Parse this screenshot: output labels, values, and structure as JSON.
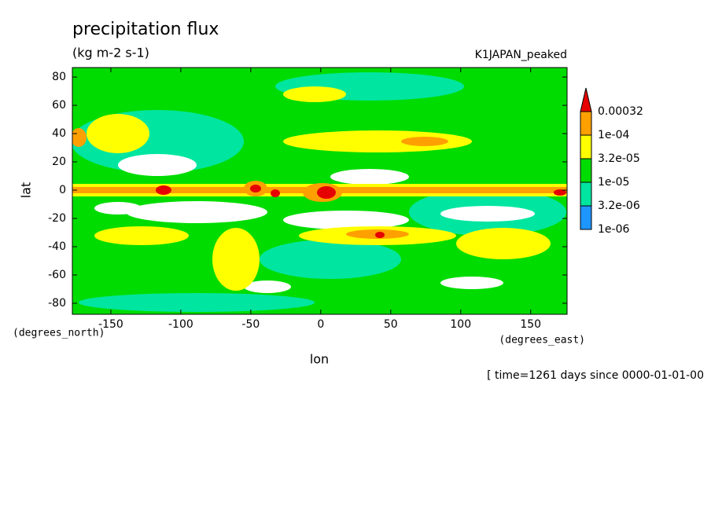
{
  "chart_data": {
    "type": "contour",
    "title": "precipitation flux",
    "subtitle": "(kg m-2 s-1)",
    "annotation": "K1JAPAN_peaked",
    "time_note": "[ time=1261 days since 0000-01-01-00",
    "x_label": "lon",
    "y_label": "lat",
    "x_units": "(degrees_east)",
    "y_units": "(degrees_north)",
    "xlim": [
      -177.5,
      176
    ],
    "ylim": [
      -87.8,
      86.7
    ],
    "xticks": [
      -150,
      -100,
      -50,
      0,
      50,
      100,
      150
    ],
    "yticks": [
      -80,
      -60,
      -40,
      -20,
      0,
      20,
      40,
      60,
      80
    ],
    "levels": [
      {
        "value": 1e-06,
        "label": "1e-06"
      },
      {
        "value": 3.2e-06,
        "label": "3.2e-06"
      },
      {
        "value": 1e-05,
        "label": "1e-05"
      },
      {
        "value": 3.2e-05,
        "label": "3.2e-05"
      },
      {
        "value": 0.0001,
        "label": "1e-04"
      },
      0.00032
    ],
    "colors": [
      "#1e96ff",
      "#00e6a0",
      "#00dc00",
      "#ffff00",
      "#ffa000",
      "#e60000"
    ]
  }
}
